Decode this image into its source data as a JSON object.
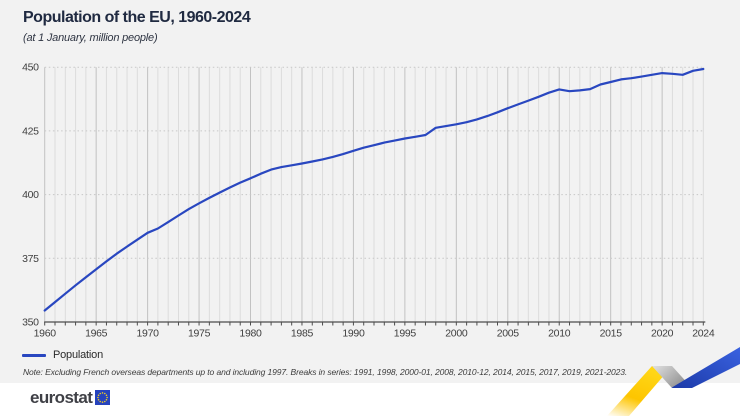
{
  "header": {
    "title": "Population of the EU, 1960-2024",
    "subtitle": "(at 1 January, million people)"
  },
  "chart_data": {
    "type": "line",
    "title": "Population of the EU, 1960-2024",
    "subtitle": "(at 1 January, million people)",
    "xlabel": "",
    "ylabel": "",
    "xlim": [
      1960,
      2024
    ],
    "ylim": [
      350,
      450
    ],
    "y_ticks": [
      350,
      375,
      400,
      425,
      450
    ],
    "x_ticks_labeled": [
      1960,
      1965,
      1970,
      1975,
      1980,
      1985,
      1990,
      1995,
      2000,
      2005,
      2010,
      2015,
      2020,
      2024
    ],
    "grid": {
      "vertical": "every year, solid light grey",
      "horizontal": "dotted at 25-unit steps"
    },
    "legend_position": "bottom-left",
    "series": [
      {
        "name": "Population",
        "color": "#2947c0",
        "years": [
          1960,
          1961,
          1962,
          1963,
          1964,
          1965,
          1966,
          1967,
          1968,
          1969,
          1970,
          1971,
          1972,
          1973,
          1974,
          1975,
          1976,
          1977,
          1978,
          1979,
          1980,
          1981,
          1982,
          1983,
          1984,
          1985,
          1986,
          1987,
          1988,
          1989,
          1990,
          1991,
          1992,
          1993,
          1994,
          1995,
          1996,
          1997,
          1998,
          1999,
          2000,
          2001,
          2002,
          2003,
          2004,
          2005,
          2006,
          2007,
          2008,
          2009,
          2010,
          2011,
          2012,
          2013,
          2014,
          2015,
          2016,
          2017,
          2018,
          2019,
          2020,
          2021,
          2022,
          2023,
          2024
        ],
        "values": [
          354.5,
          357.8,
          361.1,
          364.4,
          367.6,
          370.7,
          373.8,
          376.8,
          379.6,
          382.3,
          385.0,
          386.7,
          389.2,
          391.8,
          394.3,
          396.6,
          398.7,
          400.8,
          402.8,
          404.7,
          406.4,
          408.2,
          409.8,
          410.8,
          411.5,
          412.2,
          413.0,
          413.8,
          414.8,
          415.9,
          417.2,
          418.4,
          419.4,
          420.4,
          421.2,
          422.0,
          422.7,
          423.4,
          426.2,
          426.9,
          427.6,
          428.4,
          429.5,
          430.8,
          432.3,
          433.9,
          435.4,
          436.9,
          438.4,
          440.0,
          441.3,
          440.6,
          440.9,
          441.4,
          443.2,
          444.2,
          445.2,
          445.7,
          446.3,
          447.0,
          447.7,
          447.4,
          447.0,
          448.6,
          449.3
        ]
      }
    ]
  },
  "legend": {
    "label": "Population"
  },
  "note": {
    "text": "Note: Excluding French overseas departments up to and including 1997. Breaks in series: 1991, 1998, 2000-01, 2008, 2010-12, 2014, 2015, 2017, 2019, 2021-2023."
  },
  "footer": {
    "logo_text": "eurostat"
  },
  "colors": {
    "page_background": "#f2f2f2",
    "footer_background": "#ffffff",
    "line_blue": "#2947c0",
    "title_text": "#202a41",
    "axis_text": "#3f3f3f",
    "logo_square_blue": "#2643bd",
    "star_yellow": "#ffd617",
    "ribbon_yellow": "#fdc500",
    "ribbon_grey": "#b9b9b9",
    "ribbon_blue": "#2a4fd0"
  }
}
